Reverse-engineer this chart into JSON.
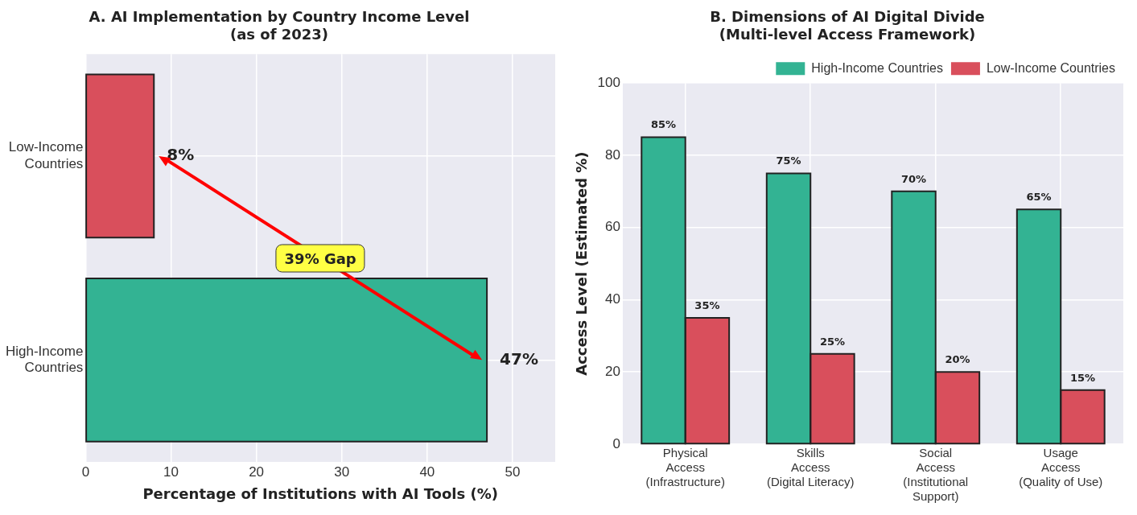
{
  "chart_data": [
    {
      "type": "bar",
      "orientation": "horizontal",
      "title": "A. AI Implementation by Country Income Level\n(as of 2023)",
      "xlabel": "Percentage of Institutions with AI Tools (%)",
      "categories": [
        "Low-Income\nCountries",
        "High-Income\nCountries"
      ],
      "values": [
        8,
        47
      ],
      "colors": [
        "#d94f5c",
        "#33b393"
      ],
      "value_labels": [
        "8%",
        "47%"
      ],
      "xlim": [
        0,
        55
      ],
      "xticks": [
        0,
        10,
        20,
        30,
        40,
        50
      ],
      "grid": true,
      "annotations": [
        "39% Gap"
      ]
    },
    {
      "type": "bar",
      "title": "B. Dimensions of AI Digital Divide\n(Multi-level Access Framework)",
      "ylabel": "Access Level (Estimated %)",
      "categories": [
        "Physical\nAccess\n(Infrastructure)",
        "Skills\nAccess\n(Digital Literacy)",
        "Social\nAccess\n(Institutional\nSupport)",
        "Usage\nAccess\n(Quality of Use)"
      ],
      "series": [
        {
          "name": "High-Income Countries",
          "color": "#33b393",
          "values": [
            85,
            75,
            70,
            65
          ],
          "value_labels": [
            "85%",
            "75%",
            "70%",
            "65%"
          ]
        },
        {
          "name": "Low-Income Countries",
          "color": "#d94f5c",
          "values": [
            35,
            25,
            20,
            15
          ],
          "value_labels": [
            "35%",
            "25%",
            "20%",
            "15%"
          ]
        }
      ],
      "ylim": [
        0,
        100
      ],
      "yticks": [
        0,
        20,
        40,
        60,
        80,
        100
      ],
      "grid": true,
      "legend": "top right"
    }
  ]
}
